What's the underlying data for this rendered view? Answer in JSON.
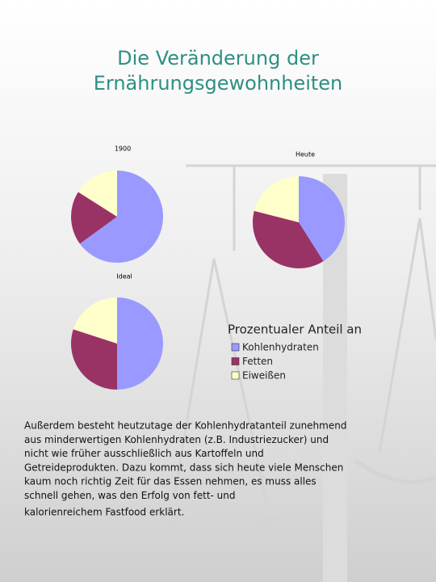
{
  "title_lines": [
    "Die Veränderung der",
    "Ernährungsgewohnheiten"
  ],
  "chart_data": [
    {
      "type": "pie",
      "title": "1900",
      "values": [
        65,
        19,
        16
      ]
    },
    {
      "type": "pie",
      "title": "Heute",
      "values": [
        41,
        38,
        21
      ]
    },
    {
      "type": "pie",
      "title": "Ideal",
      "values": [
        50,
        30,
        20
      ]
    }
  ],
  "legend": {
    "title": "Prozentualer Anteil an",
    "items": [
      {
        "name": "Kohlenhydraten",
        "color": "#9999ff"
      },
      {
        "name": "Fetten",
        "color": "#993366"
      },
      {
        "name": "Eiweißen",
        "color": "#ffffcc"
      }
    ]
  },
  "paragraph": [
    "Außerdem besteht heutzutage der Kohlenhydratanteil zunehmend",
    "aus minderwertigen Kohlenhydraten (z.B. Industriezucker) und",
    "nicht wie früher ausschließlich aus Kartoffeln und",
    "Getreideprodukten. Dazu kommt, dass sich heute viele Menschen",
    "kaum noch richtig Zeit für das Essen nehmen, es muss alles",
    "schnell gehen, was den Erfolg von fett- und",
    "kalorienreichem Fastfood erklärt."
  ]
}
